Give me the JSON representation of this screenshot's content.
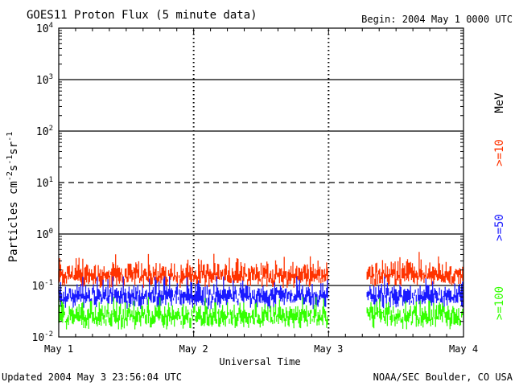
{
  "chart_data": {
    "type": "line",
    "title": "GOES11 Proton Flux (5 minute data)",
    "begin_label": "Begin: 2004 May 1 0000 UTC",
    "ylabel": "Particles cm-2s-1sr-1",
    "ylabel_parts": {
      "base1": "Particles cm",
      "exp1": "-2",
      "base2": "s",
      "exp2": "-1",
      "base3": "sr",
      "exp3": "-1"
    },
    "xlabel": "Universal Time",
    "yscale": "log",
    "ylim": [
      0.01,
      10000
    ],
    "y_ticks": [
      {
        "value": 0.01,
        "base": "10",
        "exp": "-2"
      },
      {
        "value": 0.1,
        "base": "10",
        "exp": "-1"
      },
      {
        "value": 1,
        "base": "10",
        "exp": "0"
      },
      {
        "value": 10,
        "base": "10",
        "exp": "1"
      },
      {
        "value": 100,
        "base": "10",
        "exp": "2"
      },
      {
        "value": 1000,
        "base": "10",
        "exp": "3"
      },
      {
        "value": 10000,
        "base": "10",
        "exp": "4"
      }
    ],
    "x_days": 3,
    "x_ticks": [
      {
        "day": 0,
        "label": "May 1"
      },
      {
        "day": 1,
        "label": "May 2"
      },
      {
        "day": 2,
        "label": "May 3"
      },
      {
        "day": 3,
        "label": "May 4"
      }
    ],
    "data_gap_days": [
      2.0,
      2.28
    ],
    "reference_lines": [
      {
        "value": 1000,
        "style": "solid"
      },
      {
        "value": 100,
        "style": "solid"
      },
      {
        "value": 10,
        "style": "dashed"
      },
      {
        "value": 1,
        "style": "solid"
      },
      {
        "value": 0.1,
        "style": "solid"
      }
    ],
    "series": [
      {
        "name": ">=10 MeV",
        "label": ">=10",
        "color": "#ff3300",
        "typical_flux": 0.15,
        "range": [
          0.09,
          0.45
        ]
      },
      {
        "name": ">=50 MeV",
        "label": ">=50",
        "color": "#1a1aff",
        "typical_flux": 0.06,
        "range": [
          0.035,
          0.15
        ]
      },
      {
        "name": ">=100 MeV",
        "label": ">=100",
        "color": "#33ff00",
        "typical_flux": 0.025,
        "range": [
          0.014,
          0.06
        ]
      }
    ],
    "unit_label": "MeV"
  },
  "footer": {
    "updated": "Updated 2004 May  3 23:56:04 UTC",
    "source": "NOAA/SEC Boulder, CO USA"
  },
  "colors": {
    "background": "#ffffff",
    "axis": "#000000"
  }
}
